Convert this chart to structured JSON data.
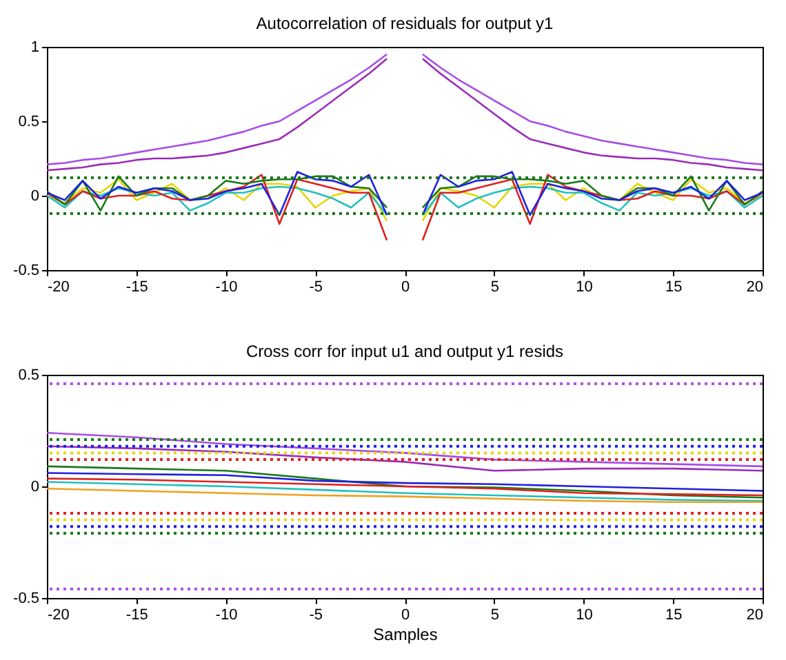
{
  "chart_data": [
    {
      "type": "line",
      "title": "Autocorrelation of residuals for output y1",
      "x": [
        -20,
        -19,
        -18,
        -17,
        -16,
        -15,
        -14,
        -13,
        -12,
        -11,
        -10,
        -9,
        -8,
        -7,
        -6,
        -5,
        -4,
        -3,
        -2,
        -1,
        0,
        1,
        2,
        3,
        4,
        5,
        6,
        7,
        8,
        9,
        10,
        11,
        12,
        13,
        14,
        15,
        16,
        17,
        18,
        19,
        20
      ],
      "xlim": [
        -20,
        20
      ],
      "xticks": [
        -20,
        -15,
        -10,
        -5,
        0,
        5,
        10,
        15,
        20
      ],
      "ylim": [
        -0.5,
        1
      ],
      "yticks": [
        -0.5,
        0,
        0.5,
        1
      ],
      "grid": false,
      "line_style": "solid",
      "series": [
        {
          "color": "#a64ce8",
          "values": [
            0.21,
            0.22,
            0.24,
            0.25,
            0.27,
            0.29,
            0.31,
            0.33,
            0.35,
            0.37,
            0.4,
            0.43,
            0.47,
            0.5,
            0.57,
            0.64,
            0.71,
            0.78,
            0.86,
            0.95,
            null,
            0.95,
            0.86,
            0.78,
            0.71,
            0.64,
            0.57,
            0.5,
            0.47,
            0.43,
            0.4,
            0.37,
            0.35,
            0.33,
            0.31,
            0.29,
            0.27,
            0.25,
            0.24,
            0.22,
            0.21
          ]
        },
        {
          "color": "#9b2cb8",
          "values": [
            0.17,
            0.18,
            0.19,
            0.21,
            0.22,
            0.24,
            0.25,
            0.25,
            0.26,
            0.27,
            0.29,
            0.32,
            0.35,
            0.38,
            0.46,
            0.55,
            0.64,
            0.73,
            0.82,
            0.92,
            null,
            0.92,
            0.82,
            0.73,
            0.64,
            0.55,
            0.46,
            0.38,
            0.35,
            0.32,
            0.29,
            0.27,
            0.26,
            0.25,
            0.25,
            0.24,
            0.22,
            0.21,
            0.19,
            0.18,
            0.17
          ]
        },
        {
          "color": "#e8d400",
          "values": [
            0,
            -0.05,
            0.05,
            0.02,
            0.11,
            -0.03,
            0.02,
            0.08,
            -0.03,
            -0.02,
            0.05,
            -0.03,
            0.08,
            0.08,
            0.06,
            -0.08,
            0,
            0.03,
            0.05,
            -0.17,
            null,
            -0.17,
            0.05,
            0.03,
            0,
            -0.08,
            0.06,
            0.08,
            0.08,
            -0.03,
            0.05,
            -0.02,
            -0.03,
            0.08,
            0.02,
            -0.03,
            0.11,
            0.02,
            0.05,
            -0.05,
            0
          ]
        },
        {
          "color": "#20c0c0",
          "values": [
            0,
            -0.08,
            0.03,
            0,
            0.05,
            0.02,
            0,
            0.02,
            -0.1,
            -0.05,
            0.02,
            0.02,
            0.05,
            0.06,
            0.05,
            0.02,
            -0.02,
            -0.08,
            0.02,
            -0.13,
            null,
            -0.13,
            0.02,
            -0.08,
            -0.02,
            0.02,
            0.05,
            0.06,
            0.05,
            0.02,
            0.02,
            -0.05,
            -0.1,
            0.02,
            0,
            0.02,
            0.05,
            0,
            0.03,
            -0.08,
            0
          ]
        },
        {
          "color": "#e02020",
          "values": [
            0.02,
            -0.06,
            0.03,
            -0.02,
            0,
            0,
            0.03,
            -0.02,
            -0.03,
            0,
            0.03,
            0.06,
            0.14,
            -0.19,
            0.11,
            0.08,
            0.05,
            0.02,
            0.02,
            -0.3,
            null,
            -0.3,
            0.02,
            0.02,
            0.05,
            0.08,
            0.11,
            -0.19,
            0.14,
            0.06,
            0.03,
            0,
            -0.03,
            -0.02,
            0.03,
            0,
            0,
            -0.02,
            0.03,
            -0.06,
            0.02
          ]
        },
        {
          "color": "#1a7a1a",
          "values": [
            0.03,
            -0.06,
            0.1,
            -0.1,
            0.13,
            0,
            0.05,
            0.05,
            -0.03,
            0,
            0.1,
            0.08,
            0.1,
            0.11,
            0.11,
            0.13,
            0.13,
            0.06,
            0.05,
            -0.08,
            null,
            -0.08,
            0.05,
            0.06,
            0.13,
            0.13,
            0.11,
            0.11,
            0.1,
            0.08,
            0.1,
            0,
            -0.03,
            0.05,
            0.05,
            0,
            0.13,
            -0.1,
            0.1,
            -0.06,
            0.03
          ]
        },
        {
          "color": "#2020e0",
          "values": [
            0.02,
            -0.03,
            0.1,
            -0.02,
            0.06,
            0.02,
            0.05,
            0.03,
            -0.03,
            -0.02,
            0.03,
            0.05,
            0.08,
            -0.13,
            0.16,
            0.11,
            0.1,
            0.06,
            0.14,
            -0.13,
            null,
            -0.13,
            0.14,
            0.06,
            0.1,
            0.11,
            0.16,
            -0.13,
            0.08,
            0.05,
            0.03,
            -0.02,
            -0.03,
            0.03,
            0.05,
            0.02,
            0.06,
            -0.02,
            0.1,
            -0.03,
            0.02
          ]
        }
      ],
      "ref_lines": [
        {
          "axis": "y",
          "value": 0.12,
          "color": "#1a7a1a",
          "line_style": "dotted"
        },
        {
          "axis": "y",
          "value": -0.12,
          "color": "#1a7a1a",
          "line_style": "dotted"
        }
      ]
    },
    {
      "type": "line",
      "title": "Cross corr for input u1 and output y1 resids",
      "xlabel": "Samples",
      "x": [
        -20,
        -15,
        -10,
        -5,
        0,
        5,
        10,
        15,
        20
      ],
      "xlim": [
        -20,
        20
      ],
      "xticks": [
        -20,
        -15,
        -10,
        -5,
        0,
        5,
        10,
        15,
        20
      ],
      "ylim": [
        -0.5,
        0.5
      ],
      "yticks": [
        -0.5,
        0,
        0.5
      ],
      "grid": false,
      "line_style": "solid",
      "series": [
        {
          "color": "#a64ce8",
          "values": [
            0.24,
            0.22,
            0.19,
            0.17,
            0.15,
            0.12,
            0.11,
            0.1,
            0.09
          ]
        },
        {
          "color": "#9b2cb8",
          "values": [
            0.18,
            0.17,
            0.155,
            0.13,
            0.11,
            0.07,
            0.08,
            0.08,
            0.07
          ]
        },
        {
          "color": "#1a7a1a",
          "values": [
            0.09,
            0.08,
            0.07,
            0.035,
            0,
            -0.005,
            -0.02,
            -0.04,
            -0.05
          ]
        },
        {
          "color": "#2020e0",
          "values": [
            0.06,
            0.055,
            0.05,
            0.025,
            0.015,
            0.01,
            0,
            -0.01,
            -0.02
          ]
        },
        {
          "color": "#e02020",
          "values": [
            0.035,
            0.03,
            0.02,
            0.01,
            0,
            -0.01,
            -0.03,
            -0.035,
            -0.04
          ]
        },
        {
          "color": "#20c0c0",
          "values": [
            0.02,
            0.01,
            0,
            -0.015,
            -0.03,
            -0.04,
            -0.05,
            -0.06,
            -0.065
          ]
        },
        {
          "color": "#f0a020",
          "values": [
            -0.01,
            -0.02,
            -0.03,
            -0.04,
            -0.045,
            -0.055,
            -0.065,
            -0.07,
            -0.07
          ]
        }
      ],
      "ref_lines": [
        {
          "axis": "y",
          "value": 0.46,
          "color": "#b050e0",
          "line_style": "dotted"
        },
        {
          "axis": "y",
          "value": -0.46,
          "color": "#b050e0",
          "line_style": "dotted"
        },
        {
          "axis": "y",
          "value": 0.21,
          "color": "#1a7a1a",
          "line_style": "dotted"
        },
        {
          "axis": "y",
          "value": -0.21,
          "color": "#1a7a1a",
          "line_style": "dotted"
        },
        {
          "axis": "y",
          "value": 0.18,
          "color": "#2020e0",
          "line_style": "dotted"
        },
        {
          "axis": "y",
          "value": -0.18,
          "color": "#2020e0",
          "line_style": "dotted"
        },
        {
          "axis": "y",
          "value": 0.15,
          "color": "#e8d400",
          "line_style": "dotted"
        },
        {
          "axis": "y",
          "value": -0.15,
          "color": "#e8d400",
          "line_style": "dotted"
        },
        {
          "axis": "y",
          "value": 0.12,
          "color": "#e02020",
          "line_style": "dotted"
        },
        {
          "axis": "y",
          "value": -0.12,
          "color": "#e02020",
          "line_style": "dotted"
        }
      ]
    }
  ]
}
